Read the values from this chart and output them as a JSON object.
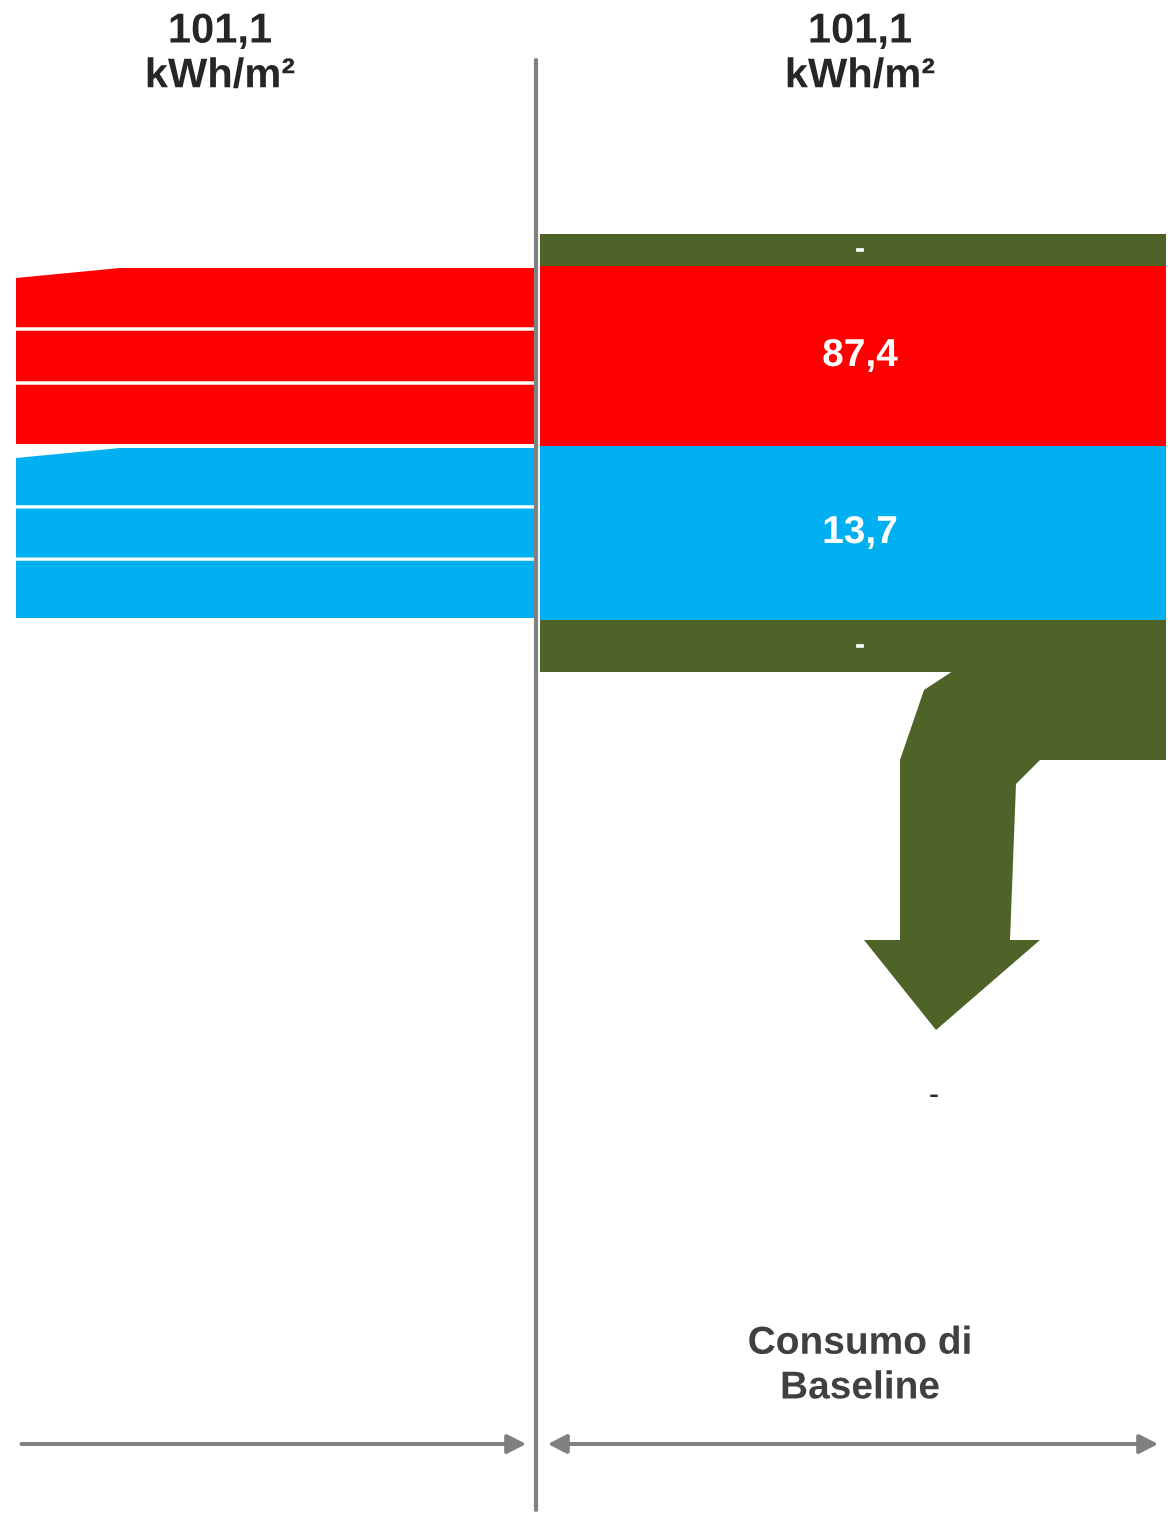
{
  "chart_data": {
    "type": "other",
    "categories": [
      null,
      null,
      null,
      null
    ],
    "values": [
      null,
      87.4,
      13.7,
      null
    ],
    "value_labels": [
      "-",
      "87,4",
      "13,7",
      "-"
    ],
    "colors": [
      "#4f6228",
      "#ff0000",
      "#00b0f0",
      "#4f6228"
    ],
    "annotations": [
      "101,1\nkWh/m²",
      "101,1\nkWh/m²",
      "-",
      "Consumo di\nBaseline"
    ]
  }
}
